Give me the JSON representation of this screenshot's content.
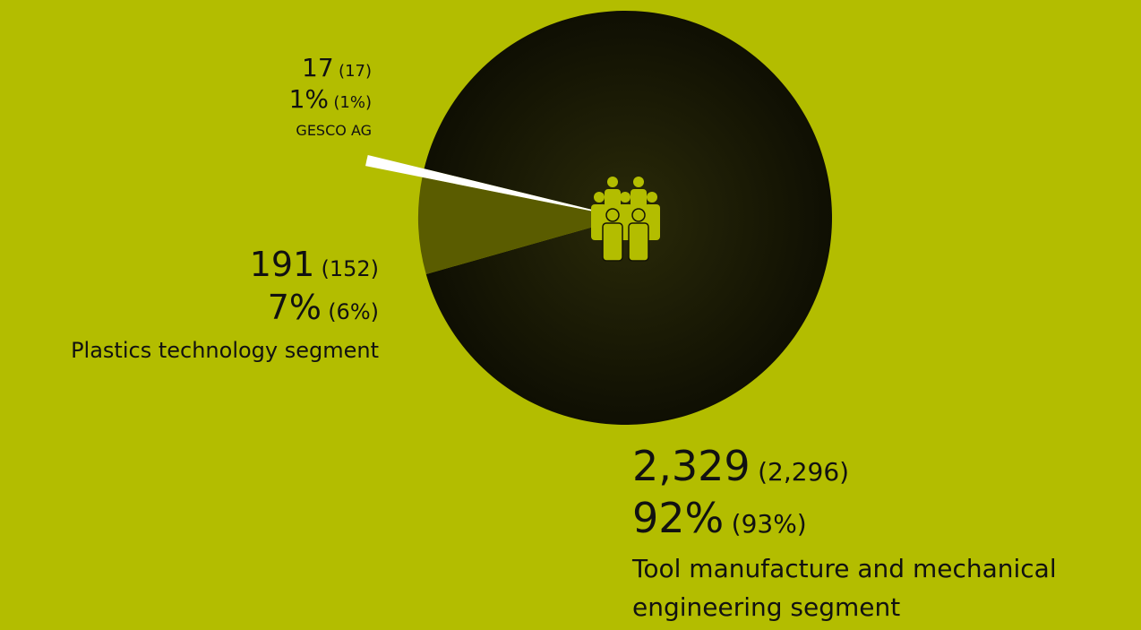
{
  "chart_data": {
    "type": "pie",
    "categories": [
      "Tool manufacture and mechanical engineering segment",
      "Plastics technology segment",
      "GESCO AG"
    ],
    "values": [
      2329,
      191,
      17
    ],
    "value_labels": [
      "2,329",
      "191",
      "17"
    ],
    "prior_values": [
      2296,
      152,
      17
    ],
    "prior_value_labels": [
      "(2,296)",
      "(152)",
      "(17)"
    ],
    "percentages": [
      92,
      7,
      1
    ],
    "percentage_labels": [
      "92%",
      "7%",
      "1%"
    ],
    "prior_percentages": [
      93,
      6,
      1
    ],
    "prior_percentage_labels": [
      "(93%)",
      "(6%)",
      "(1%)"
    ],
    "colors": [
      "#141405",
      "#5a5c00",
      "#ffffff"
    ],
    "background": "#b3bd00"
  }
}
